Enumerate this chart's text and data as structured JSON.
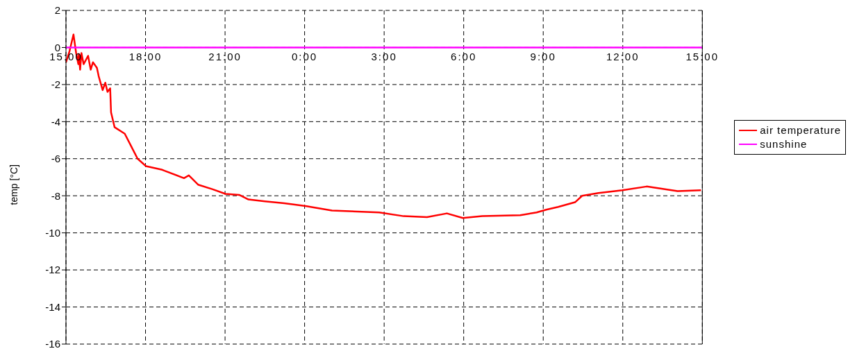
{
  "chart_data": {
    "type": "line",
    "ylabel": "temp [°C]",
    "xlim": [
      "--01-01T15:00",
      "--01-02T15:00"
    ],
    "xticks": [
      {
        "value": "--01-01T15:00",
        "label": "15:00"
      },
      {
        "value": "--01-01T18:00",
        "label": "18:00"
      },
      {
        "value": "--01-01T21:00",
        "label": "21:00"
      },
      {
        "value": "--01-02T00:00",
        "label": "0:00"
      },
      {
        "value": "--01-02T03:00",
        "label": "3:00"
      },
      {
        "value": "--01-02T06:00",
        "label": "6:00"
      },
      {
        "value": "--01-02T09:00",
        "label": "9:00"
      },
      {
        "value": "--01-02T12:00",
        "label": "12:00"
      },
      {
        "value": "--01-02T15:00",
        "label": "15:00"
      }
    ],
    "ylim": [
      -16,
      2
    ],
    "yticks": [
      -16,
      -14,
      -12,
      -10,
      -8,
      -6,
      -4,
      -2,
      0,
      2
    ],
    "grid": true,
    "legend": "right",
    "marker": "none",
    "line_style": "solid",
    "series": [
      {
        "name": "air temperature",
        "color": "#ff0000",
        "x": [
          "--01-01T15:00",
          "--01-01T15:08",
          "--01-01T15:17",
          "--01-01T15:23",
          "--01-01T15:28",
          "--01-01T15:29",
          "--01-01T15:32",
          "--01-01T15:35",
          "--01-01T15:40",
          "--01-01T15:50",
          "--01-01T15:56",
          "--01-01T16:01",
          "--01-01T16:10",
          "--01-01T16:14",
          "--01-01T16:23",
          "--01-01T16:29",
          "--01-01T16:34",
          "--01-01T16:40",
          "--01-01T16:42",
          "--01-01T16:50",
          "--01-01T17:13",
          "--01-01T17:27",
          "--01-01T17:42",
          "--01-01T18:01",
          "--01-01T18:38",
          "--01-01T18:43",
          "--01-01T19:27",
          "--01-01T19:38",
          "--01-01T19:59",
          "--01-01T20:32",
          "--01-01T21:01",
          "--01-01T21:32",
          "--01-01T21:53",
          "--01-01T22:30",
          "--01-01T23:14",
          "--01-02T00:02",
          "--01-02T01:02",
          "--01-02T02:49",
          "--01-02T03:44",
          "--01-02T04:37",
          "--01-02T05:22",
          "--01-02T05:58",
          "--01-02T06:42",
          "--01-02T08:08",
          "--01-02T08:45",
          "--01-02T09:07",
          "--01-02T09:34",
          "--01-02T10:12",
          "--01-02T10:28",
          "--01-02T11:05",
          "--01-02T11:59",
          "--01-02T12:54",
          "--01-02T14:04",
          "--01-02T14:57"
        ],
        "values": [
          -0.8,
          -0.2,
          0.7,
          -0.3,
          -0.9,
          -0.35,
          -1.2,
          -0.3,
          -0.9,
          -0.45,
          -1.2,
          -0.8,
          -1.1,
          -1.55,
          -2.3,
          -1.9,
          -2.4,
          -2.2,
          -3.5,
          -4.3,
          -4.65,
          -5.3,
          -6.0,
          -6.4,
          -6.6,
          -6.65,
          -7.05,
          -6.9,
          -7.4,
          -7.65,
          -7.9,
          -7.95,
          -8.2,
          -8.3,
          -8.4,
          -8.55,
          -8.8,
          -8.9,
          -9.1,
          -9.15,
          -8.95,
          -9.2,
          -9.1,
          -9.05,
          -8.9,
          -8.75,
          -8.6,
          -8.35,
          -8.0,
          -7.85,
          -7.7,
          -7.5,
          -7.75,
          -7.7
        ]
      },
      {
        "name": "sunshine",
        "color": "#ff00ff",
        "x": [
          "--01-01T15:00",
          "--01-02T15:00"
        ],
        "values": [
          0,
          0
        ]
      }
    ]
  }
}
